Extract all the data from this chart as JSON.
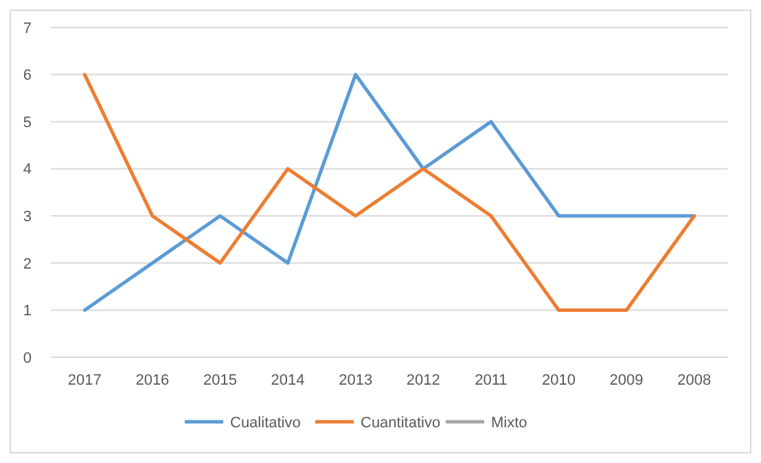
{
  "chart_data": {
    "type": "line",
    "categories": [
      "2017",
      "2016",
      "2015",
      "2014",
      "2013",
      "2012",
      "2011",
      "2010",
      "2009",
      "2008"
    ],
    "series": [
      {
        "name": "Cualitativo",
        "color": "#5b9bd5",
        "values": [
          1,
          2,
          3,
          2,
          6,
          4,
          5,
          3,
          3,
          3
        ]
      },
      {
        "name": "Cuantitativo",
        "color": "#ed7d31",
        "values": [
          6,
          3,
          2,
          4,
          3,
          4,
          3,
          1,
          1,
          3
        ]
      },
      {
        "name": "Mixto",
        "color": "#a5a5a5",
        "values": [
          null,
          null,
          null,
          null,
          null,
          null,
          null,
          null,
          null,
          null
        ]
      }
    ],
    "ylim": [
      0,
      7
    ],
    "yticks": [
      0,
      1,
      2,
      3,
      4,
      5,
      6,
      7
    ],
    "grid": "y",
    "legend": "bottom",
    "marker": "none",
    "line_style": "solid"
  }
}
